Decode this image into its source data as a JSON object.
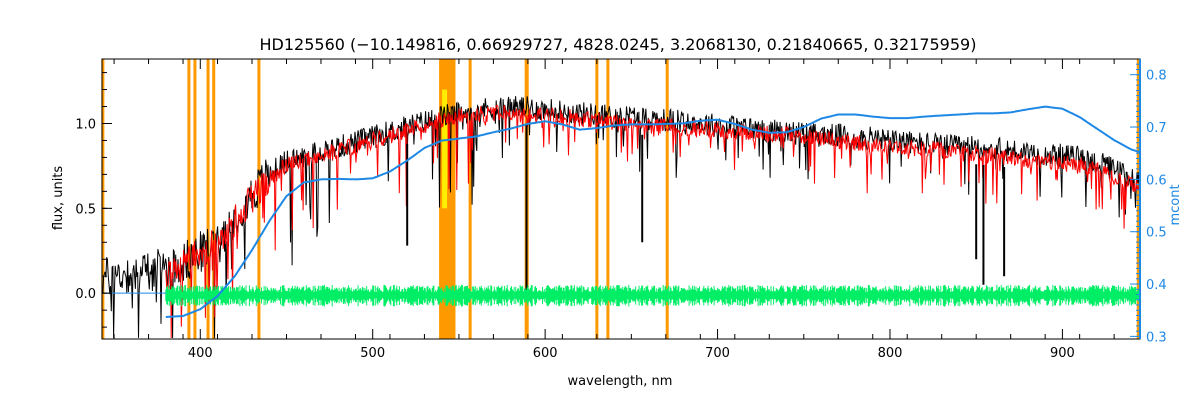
{
  "chart_data": {
    "type": "line",
    "title": "HD125560    (−10.149816, 0.66929727, 4828.0245, 3.2068130, 0.21840665, 0.32175959)",
    "xlabel": "wavelength, nm",
    "ylabel": "flux, units",
    "y2label": "mcont",
    "xlim": [
      343,
      945
    ],
    "ylim": [
      -0.27,
      1.38
    ],
    "y2lim": [
      0.295,
      0.83
    ],
    "x_ticks": [
      400,
      500,
      600,
      700,
      800,
      900
    ],
    "y_ticks": [
      0.0,
      0.5,
      1.0
    ],
    "y2_ticks": [
      0.3,
      0.4,
      0.5,
      0.6,
      0.7,
      0.8
    ],
    "x_tick_labels": [
      "400",
      "500",
      "600",
      "700",
      "800",
      "900"
    ],
    "y_tick_labels": [
      "0.0",
      "0.5",
      "1.0"
    ],
    "y2_tick_labels": [
      "0.3",
      "0.4",
      "0.5",
      "0.6",
      "0.7",
      "0.8"
    ],
    "grid": false,
    "colors": {
      "observed": "#000000",
      "model": "#ff0000",
      "residual": "#00ee66",
      "continuum": "#1e88e5",
      "mask_band": "#ff9900",
      "mask_highlight": "#ffee00",
      "right_axis": "#1e88e5"
    },
    "mask_lines": [
      343.5,
      393.4,
      396.9,
      404.5,
      407.8,
      434.0,
      556.5,
      589.0,
      589.6,
      630.0,
      636.4,
      670.8,
      944.0
    ],
    "mask_band": [
      538.5,
      548.0
    ],
    "series": [
      {
        "role": "observed",
        "x": [
          343,
          350,
          360,
          370,
          380,
          385,
          390,
          395,
          400,
          405,
          410,
          415,
          420,
          425,
          430,
          435,
          440,
          445,
          450,
          460,
          470,
          480,
          490,
          500,
          510,
          520,
          530,
          540,
          550,
          560,
          570,
          580,
          590,
          600,
          610,
          620,
          630,
          640,
          650,
          660,
          670,
          680,
          690,
          700,
          710,
          720,
          730,
          740,
          750,
          760,
          770,
          780,
          790,
          800,
          810,
          820,
          830,
          840,
          850,
          860,
          870,
          880,
          890,
          900,
          910,
          920,
          930,
          940,
          945
        ],
        "y": [
          0.09,
          0.1,
          0.12,
          0.13,
          0.15,
          0.16,
          0.18,
          0.21,
          0.24,
          0.27,
          0.32,
          0.38,
          0.45,
          0.52,
          0.58,
          0.64,
          0.7,
          0.74,
          0.78,
          0.8,
          0.84,
          0.86,
          0.89,
          0.92,
          0.95,
          0.98,
          1.01,
          1.04,
          1.06,
          1.08,
          1.09,
          1.1,
          1.09,
          1.08,
          1.07,
          1.06,
          1.05,
          1.04,
          1.04,
          1.03,
          1.02,
          1.01,
          1.0,
          0.99,
          0.98,
          0.97,
          0.96,
          0.95,
          0.94,
          0.93,
          0.93,
          0.92,
          0.91,
          0.9,
          0.89,
          0.88,
          0.87,
          0.86,
          0.86,
          0.85,
          0.84,
          0.83,
          0.82,
          0.81,
          0.8,
          0.77,
          0.73,
          0.68,
          0.65
        ]
      },
      {
        "role": "model",
        "x": [
          380,
          385,
          390,
          395,
          400,
          405,
          410,
          415,
          420,
          425,
          430,
          435,
          440,
          445,
          450,
          460,
          470,
          480,
          490,
          500,
          510,
          520,
          530,
          540,
          550,
          560,
          570,
          580,
          590,
          600,
          610,
          620,
          630,
          640,
          650,
          660,
          670,
          680,
          690,
          700,
          710,
          720,
          730,
          740,
          750,
          760,
          770,
          780,
          790,
          800,
          810,
          820,
          830,
          840,
          850,
          860,
          870,
          880,
          890,
          900,
          910,
          920,
          930,
          940,
          945
        ],
        "y": [
          0.08,
          0.13,
          0.17,
          0.21,
          0.24,
          0.27,
          0.31,
          0.37,
          0.43,
          0.5,
          0.56,
          0.62,
          0.67,
          0.71,
          0.75,
          0.78,
          0.81,
          0.84,
          0.87,
          0.9,
          0.93,
          0.96,
          0.99,
          1.02,
          1.04,
          1.05,
          1.06,
          1.06,
          1.05,
          1.04,
          1.04,
          1.03,
          1.02,
          1.01,
          1.0,
          0.99,
          0.99,
          0.98,
          0.97,
          0.96,
          0.95,
          0.94,
          0.94,
          0.93,
          0.92,
          0.91,
          0.9,
          0.89,
          0.88,
          0.87,
          0.86,
          0.85,
          0.84,
          0.83,
          0.82,
          0.81,
          0.8,
          0.79,
          0.78,
          0.77,
          0.75,
          0.72,
          0.68,
          0.64,
          0.61
        ]
      },
      {
        "role": "continuum",
        "axis": "right",
        "x": [
          380,
          390,
          400,
          410,
          420,
          430,
          440,
          450,
          460,
          470,
          480,
          490,
          500,
          510,
          520,
          530,
          540,
          550,
          560,
          570,
          580,
          590,
          600,
          610,
          620,
          630,
          640,
          650,
          660,
          670,
          680,
          690,
          700,
          710,
          720,
          730,
          740,
          750,
          760,
          770,
          780,
          790,
          800,
          810,
          820,
          830,
          840,
          850,
          860,
          870,
          880,
          890,
          900,
          910,
          920,
          930,
          940,
          945
        ],
        "y": [
          0.337,
          0.339,
          0.352,
          0.377,
          0.415,
          0.465,
          0.52,
          0.568,
          0.594,
          0.6,
          0.601,
          0.6,
          0.602,
          0.615,
          0.636,
          0.66,
          0.674,
          0.678,
          0.682,
          0.69,
          0.697,
          0.706,
          0.711,
          0.705,
          0.695,
          0.698,
          0.703,
          0.705,
          0.705,
          0.706,
          0.707,
          0.712,
          0.714,
          0.706,
          0.695,
          0.689,
          0.69,
          0.7,
          0.716,
          0.724,
          0.724,
          0.72,
          0.717,
          0.717,
          0.72,
          0.722,
          0.724,
          0.726,
          0.726,
          0.728,
          0.734,
          0.739,
          0.735,
          0.719,
          0.697,
          0.675,
          0.657,
          0.652
        ]
      }
    ],
    "residual_band": {
      "x_start": 380,
      "x_end": 945,
      "center": -0.01,
      "amplitude": 0.07
    }
  }
}
